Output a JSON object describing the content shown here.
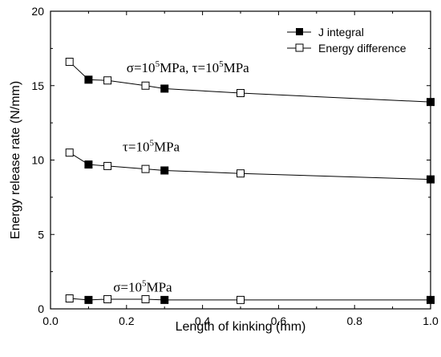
{
  "chart_data": {
    "type": "line",
    "xlabel": "Length of kinking (mm)",
    "ylabel": "Energy release rate (N/mm)",
    "xlim": [
      0.0,
      1.0
    ],
    "ylim": [
      0,
      20
    ],
    "x_ticks": [
      "0.0",
      "0.2",
      "0.4",
      "0.6",
      "0.8",
      "1.0"
    ],
    "y_ticks": [
      "0",
      "5",
      "10",
      "15",
      "20"
    ],
    "legend_position": "top-right",
    "series": [
      {
        "name": "J integral",
        "marker": "filled-square",
        "groups": [
          {
            "x": [
              0.1,
              0.3,
              1.0
            ],
            "y": [
              0.6,
              0.6,
              0.6
            ]
          },
          {
            "x": [
              0.1,
              0.3,
              1.0
            ],
            "y": [
              9.7,
              9.3,
              8.7
            ]
          },
          {
            "x": [
              0.1,
              0.3,
              1.0
            ],
            "y": [
              15.4,
              14.8,
              13.9
            ]
          }
        ]
      },
      {
        "name": "Energy difference",
        "marker": "open-square",
        "groups": [
          {
            "x": [
              0.05,
              0.15,
              0.25,
              0.5
            ],
            "y": [
              0.7,
              0.65,
              0.65,
              0.6
            ]
          },
          {
            "x": [
              0.05,
              0.15,
              0.25,
              0.5
            ],
            "y": [
              10.5,
              9.6,
              9.4,
              9.1
            ]
          },
          {
            "x": [
              0.05,
              0.15,
              0.25,
              0.5
            ],
            "y": [
              16.6,
              15.35,
              15.0,
              14.5
            ]
          }
        ]
      }
    ],
    "annotations": [
      {
        "parts": [
          [
            "σ=10",
            ""
          ],
          [
            "5",
            "sup"
          ],
          [
            "MPa, τ=10",
            ""
          ],
          [
            "5",
            "sup"
          ],
          [
            "MPa",
            ""
          ]
        ],
        "x": 0.2,
        "y": 15.9
      },
      {
        "parts": [
          [
            "τ=10",
            ""
          ],
          [
            "5",
            "sup"
          ],
          [
            "MPa",
            ""
          ]
        ],
        "x": 0.19,
        "y": 10.6
      },
      {
        "parts": [
          [
            "σ=10",
            ""
          ],
          [
            "5",
            "sup"
          ],
          [
            "MPa",
            ""
          ]
        ],
        "x": 0.165,
        "y": 1.15
      }
    ]
  }
}
